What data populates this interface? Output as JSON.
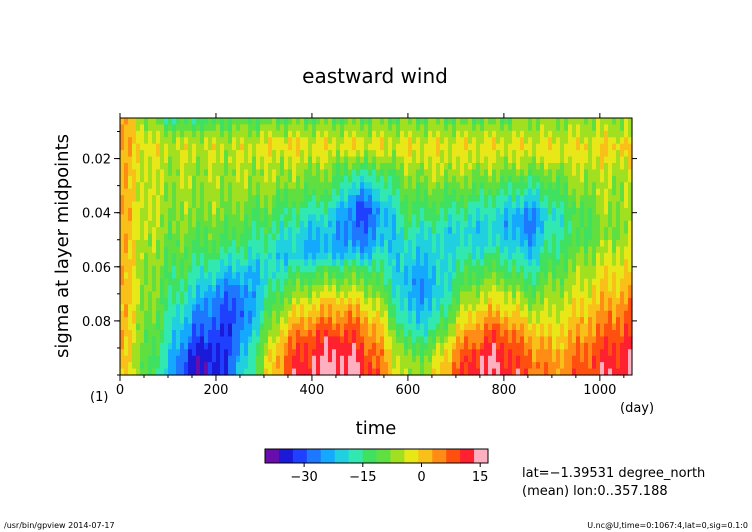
{
  "chart_data": {
    "type": "heatmap",
    "title": "eastward wind",
    "xlabel": "time",
    "ylabel": "sigma at layer midpoints",
    "x_unit": "(day)",
    "y_unit": "(1)",
    "xlim": [
      0,
      1067
    ],
    "ylim": [
      0.005,
      0.1
    ],
    "y_inverted": true,
    "x_ticks": [
      0,
      200,
      400,
      600,
      800,
      1000
    ],
    "y_ticks": [
      0.02,
      0.04,
      0.06,
      0.08
    ],
    "x_tick_labels": [
      "0",
      "200",
      "400",
      "600",
      "800",
      "1000"
    ],
    "y_tick_labels": [
      "0.02",
      "0.04",
      "0.06",
      "0.08"
    ],
    "colorbar": {
      "range": [
        -40,
        17
      ],
      "ticks": [
        -30,
        -15,
        0,
        15
      ],
      "tick_labels": [
        "−30",
        "−15",
        "0",
        "15"
      ],
      "colors": [
        "#6a0dad",
        "#1a1ad8",
        "#2040ff",
        "#1e78ff",
        "#14a8ff",
        "#20d0e0",
        "#30e8b0",
        "#40e060",
        "#60e040",
        "#a0e020",
        "#e8e818",
        "#f8c018",
        "#ff8c14",
        "#ff5010",
        "#ff2030",
        "#ffb0c0"
      ]
    },
    "approx_values_ms": {
      "columns_day": [
        0,
        50,
        100,
        150,
        200,
        250,
        300,
        350,
        400,
        450,
        500,
        550,
        600,
        650,
        700,
        750,
        800,
        850,
        900,
        950,
        1000,
        1067
      ],
      "rows_sigma": [
        0.005,
        0.01,
        0.015,
        0.02,
        0.025,
        0.03,
        0.035,
        0.04,
        0.045,
        0.05,
        0.055,
        0.06,
        0.065,
        0.07,
        0.075,
        0.08,
        0.085,
        0.09,
        0.095,
        0.1
      ],
      "z": [
        [
          3,
          -6,
          -14,
          -14,
          -13,
          -12,
          -11,
          -10,
          -10,
          -10,
          -10,
          -10,
          -10,
          -10,
          -10,
          -10,
          -10,
          -9,
          -9,
          -8,
          -6,
          -6
        ],
        [
          3,
          -4,
          -9,
          -9,
          -8,
          -8,
          -7,
          -6,
          -6,
          -6,
          -6,
          -6,
          -6,
          -6,
          -6,
          -6,
          -6,
          -6,
          -6,
          -6,
          -5,
          -5
        ],
        [
          3,
          -2,
          -4,
          -4,
          -4,
          -4,
          -2,
          -1,
          -2,
          -2,
          -1,
          -2,
          -2,
          -2,
          -2,
          -2,
          -2,
          -2,
          -2,
          -2,
          -1,
          0
        ],
        [
          2,
          -3,
          -5,
          -5,
          -5,
          -5,
          -4,
          -4,
          -4,
          -6,
          -8,
          -7,
          -4,
          -4,
          -4,
          -4,
          -5,
          -5,
          -4,
          -4,
          -3,
          -3
        ],
        [
          2,
          -3,
          -6,
          -6,
          -6,
          -6,
          -6,
          -6,
          -7,
          -10,
          -16,
          -12,
          -7,
          -6,
          -6,
          -7,
          -8,
          -10,
          -8,
          -6,
          -5,
          -5
        ],
        [
          2,
          -4,
          -6,
          -7,
          -7,
          -7,
          -7,
          -8,
          -9,
          -12,
          -22,
          -16,
          -9,
          -8,
          -9,
          -10,
          -12,
          -15,
          -12,
          -8,
          -6,
          -6
        ],
        [
          2,
          -4,
          -7,
          -7,
          -7,
          -8,
          -9,
          -11,
          -13,
          -16,
          -28,
          -20,
          -11,
          -11,
          -12,
          -14,
          -16,
          -20,
          -15,
          -10,
          -7,
          -6
        ],
        [
          2,
          -4,
          -7,
          -8,
          -8,
          -9,
          -11,
          -14,
          -17,
          -20,
          -32,
          -24,
          -13,
          -14,
          -16,
          -18,
          -20,
          -26,
          -18,
          -12,
          -8,
          -6
        ],
        [
          2,
          -4,
          -8,
          -9,
          -10,
          -11,
          -13,
          -16,
          -20,
          -22,
          -30,
          -22,
          -16,
          -17,
          -19,
          -20,
          -22,
          -28,
          -18,
          -13,
          -9,
          -6
        ],
        [
          2,
          -5,
          -9,
          -10,
          -12,
          -13,
          -15,
          -19,
          -22,
          -24,
          -28,
          -22,
          -18,
          -19,
          -20,
          -20,
          -20,
          -26,
          -16,
          -12,
          -8,
          -5
        ],
        [
          2,
          -5,
          -10,
          -12,
          -14,
          -16,
          -18,
          -21,
          -23,
          -22,
          -22,
          -19,
          -20,
          -20,
          -18,
          -17,
          -16,
          -22,
          -14,
          -10,
          -6,
          -3
        ],
        [
          2,
          -6,
          -11,
          -14,
          -18,
          -21,
          -20,
          -18,
          -16,
          -14,
          -14,
          -16,
          -22,
          -22,
          -16,
          -13,
          -12,
          -18,
          -12,
          -8,
          -4,
          -1
        ],
        [
          2,
          -6,
          -12,
          -16,
          -22,
          -25,
          -20,
          -13,
          -10,
          -8,
          -9,
          -13,
          -24,
          -24,
          -14,
          -9,
          -8,
          -14,
          -10,
          -6,
          -2,
          1
        ],
        [
          2,
          -6,
          -13,
          -19,
          -26,
          -28,
          -18,
          -9,
          -5,
          -3,
          -4,
          -10,
          -24,
          -24,
          -12,
          -5,
          -4,
          -10,
          -8,
          -4,
          0,
          3
        ],
        [
          2,
          -7,
          -14,
          -22,
          -28,
          -30,
          -16,
          -5,
          0,
          2,
          1,
          -7,
          -22,
          -22,
          -9,
          -1,
          0,
          -6,
          -6,
          -2,
          2,
          5
        ],
        [
          2,
          -7,
          -15,
          -25,
          -30,
          -30,
          -14,
          -1,
          4,
          6,
          5,
          -4,
          -20,
          -19,
          -5,
          3,
          4,
          -2,
          -3,
          0,
          4,
          8
        ],
        [
          2,
          -8,
          -16,
          -28,
          -32,
          -28,
          -11,
          3,
          8,
          10,
          8,
          -1,
          -16,
          -15,
          -1,
          7,
          8,
          2,
          -1,
          2,
          6,
          10
        ],
        [
          2,
          -8,
          -18,
          -32,
          -34,
          -26,
          -8,
          6,
          11,
          13,
          11,
          2,
          -12,
          -10,
          3,
          10,
          11,
          5,
          1,
          4,
          8,
          12
        ],
        [
          2,
          -9,
          -20,
          -35,
          -35,
          -24,
          -6,
          8,
          13,
          15,
          13,
          4,
          -9,
          -6,
          6,
          13,
          13,
          7,
          3,
          6,
          10,
          13
        ],
        [
          2,
          -9,
          -21,
          -36,
          -35,
          -23,
          -5,
          9,
          14,
          16,
          14,
          5,
          -8,
          -4,
          8,
          14,
          14,
          8,
          4,
          7,
          11,
          14
        ]
      ]
    }
  },
  "annotations": {
    "lat": "lat=−1.39531 degree_north",
    "lon": "(mean) lon:0..357.188",
    "footer_left": "/usr/bin/gpview  2014-07-17",
    "footer_right": "U.nc@U,time=0:1067:4,lat=0,sig=0.1:0"
  }
}
